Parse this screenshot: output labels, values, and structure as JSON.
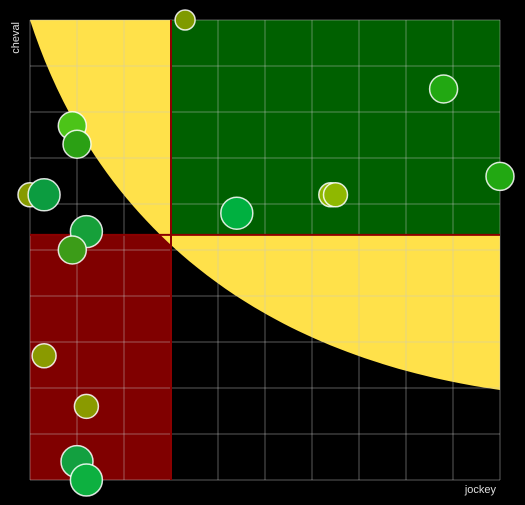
{
  "chart_data": {
    "type": "bubble",
    "x_label": "jockey",
    "y_label": "cheval",
    "xlim": [
      0,
      10
    ],
    "ylim": [
      0,
      10
    ],
    "xticks": [
      0,
      1,
      2,
      3,
      4,
      5,
      6,
      7,
      8,
      9,
      10
    ],
    "yticks": [
      0,
      1,
      2,
      3,
      4,
      5,
      6,
      7,
      8,
      9,
      10
    ],
    "grid": true,
    "x_split": 3,
    "y_split": 5.33,
    "split_color": "#8b0000",
    "low_color": "#800000",
    "high_color": "#006000",
    "zone_color": "#ffe14a",
    "series": [
      {
        "x": [
          3.3,
          8.8,
          10.0,
          4.4,
          6.4,
          6.5,
          0.9,
          1.0,
          0.0,
          0.3,
          1.2,
          0.9,
          0.3,
          1.2,
          1.0,
          1.2
        ],
        "values": [
          10.0,
          8.5,
          6.6,
          5.8,
          6.2,
          6.2,
          7.7,
          7.3,
          6.2,
          6.2,
          5.4,
          5.0,
          2.7,
          1.6,
          0.4,
          0.0
        ],
        "sizes": [
          10,
          14,
          14,
          16,
          12,
          12,
          14,
          14,
          12,
          16,
          16,
          14,
          12,
          12,
          16,
          16
        ],
        "colors": [
          "#7f9a00",
          "#22a812",
          "#22a812",
          "#00b040",
          "#8fb800",
          "#8fb800",
          "#4cc418",
          "#2ba014",
          "#869a00",
          "#0c9c40",
          "#16a03a",
          "#3c9c18",
          "#8a9a00",
          "#8a9a00",
          "#13a040",
          "#0db040"
        ]
      }
    ]
  }
}
